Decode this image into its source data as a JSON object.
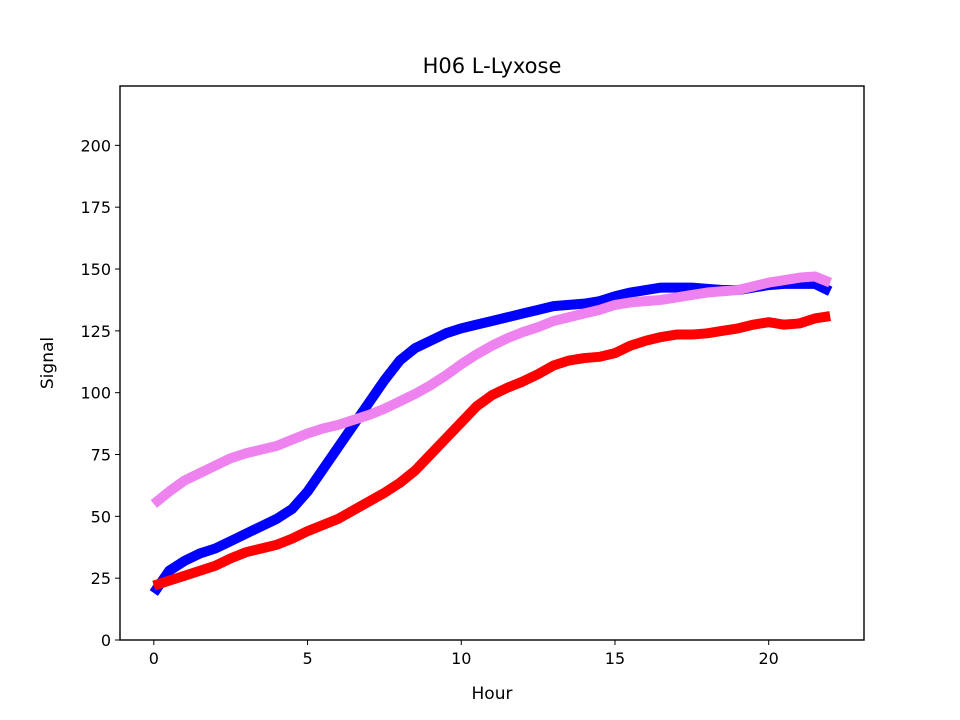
{
  "chart_data": {
    "type": "line",
    "title": "H06 L-Lyxose",
    "xlabel": "Hour",
    "ylabel": "Signal",
    "xlim": [
      -1.1,
      23.1
    ],
    "ylim": [
      0,
      224
    ],
    "xticks": [
      0,
      5,
      10,
      15,
      20
    ],
    "yticks": [
      0,
      25,
      50,
      75,
      100,
      125,
      150,
      175,
      200
    ],
    "grid": false,
    "x": [
      0,
      0.5,
      1,
      1.5,
      2,
      2.5,
      3,
      3.5,
      4,
      4.5,
      5,
      5.5,
      6,
      6.5,
      7,
      7.5,
      8,
      8.5,
      9,
      9.5,
      10,
      10.5,
      11,
      11.5,
      12,
      12.5,
      13,
      13.5,
      14,
      14.5,
      15,
      15.5,
      16,
      16.5,
      17,
      17.5,
      18,
      18.5,
      19,
      19.5,
      20,
      20.5,
      21,
      21.5,
      22
    ],
    "series": [
      {
        "color": "#0000ff",
        "values": [
          19,
          28,
          32,
          35,
          37,
          40,
          43,
          46,
          49,
          53,
          60,
          69,
          78,
          87,
          96,
          105,
          113,
          118,
          121,
          124,
          126,
          127.5,
          129,
          130.5,
          132,
          133.5,
          135,
          135.5,
          136,
          137,
          139,
          140.5,
          141.5,
          142.5,
          142.5,
          142.5,
          142,
          141.5,
          141.5,
          142.5,
          143.5,
          144,
          144,
          144,
          141
        ]
      },
      {
        "color": "#ff0000",
        "values": [
          22,
          24,
          26,
          28,
          30,
          33,
          35.5,
          37,
          38.5,
          41,
          44,
          46.5,
          49,
          52.5,
          56,
          59.5,
          63.5,
          68.5,
          75,
          81.5,
          88,
          94.5,
          99,
          102,
          104.5,
          107.5,
          111,
          113,
          114,
          114.5,
          116,
          119,
          121,
          122.5,
          123.5,
          123.5,
          124,
          125,
          126,
          127.5,
          128.5,
          127.5,
          128,
          130,
          131
        ]
      },
      {
        "color": "#ee82ee",
        "values": [
          55,
          60,
          64.5,
          67.5,
          70.5,
          73.5,
          75.5,
          77,
          78.5,
          81,
          83.5,
          85.5,
          87,
          89,
          91,
          93.5,
          96.5,
          99.5,
          103,
          107,
          111.5,
          115.5,
          119,
          122,
          124.5,
          126.5,
          129,
          130.5,
          132,
          133.5,
          135.5,
          136.5,
          137,
          137.5,
          138.5,
          139.5,
          140.5,
          141,
          141.5,
          143,
          144.5,
          145.5,
          146.5,
          147,
          144.5
        ]
      }
    ]
  }
}
